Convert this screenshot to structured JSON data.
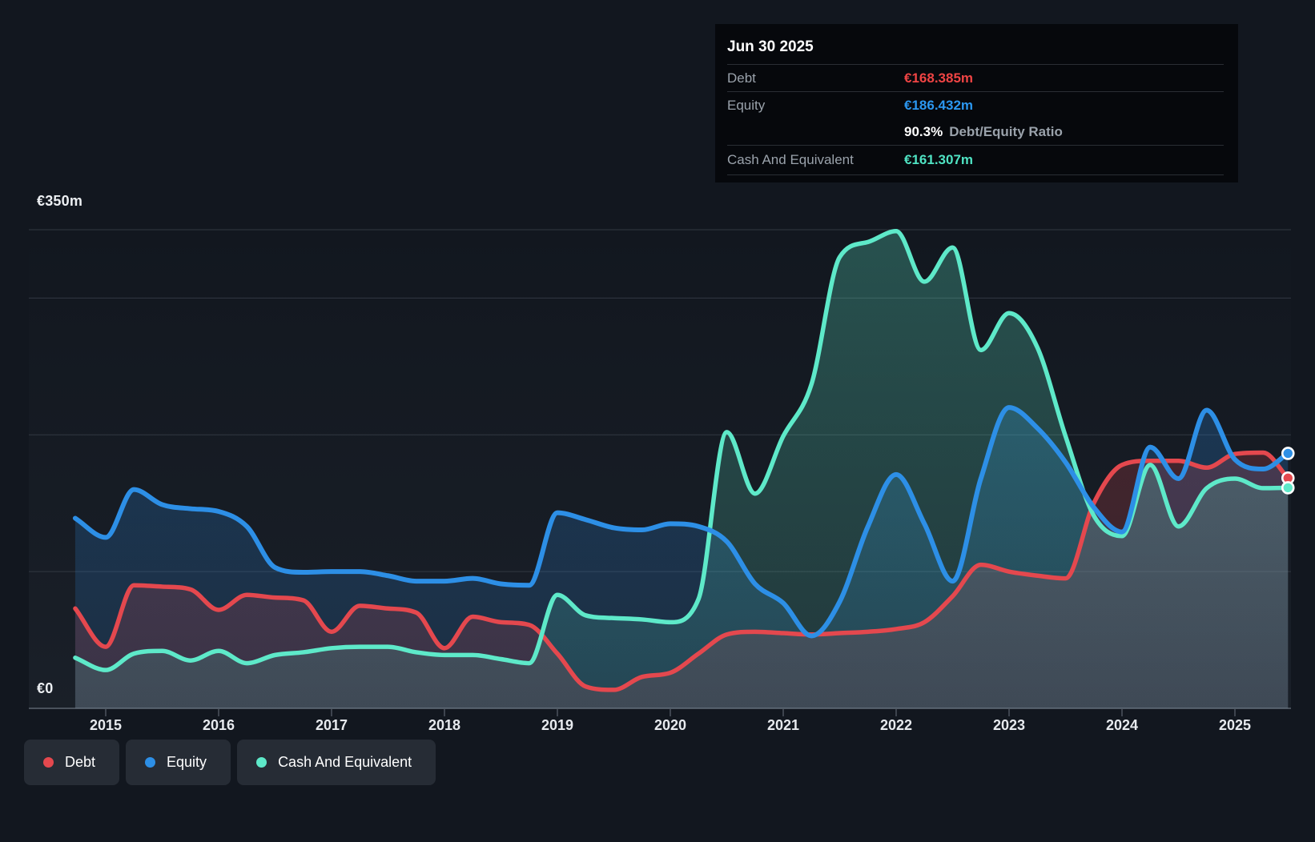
{
  "tooltip": {
    "date": "Jun 30 2025",
    "debt_label": "Debt",
    "debt_value": "€168.385m",
    "equity_label": "Equity",
    "equity_value": "€186.432m",
    "ratio_value": "90.3%",
    "ratio_label": "Debt/Equity Ratio",
    "cash_label": "Cash And Equivalent",
    "cash_value": "€161.307m"
  },
  "axis": {
    "y_max_label": "€350m",
    "y_zero_label": "€0",
    "years": [
      "2015",
      "2016",
      "2017",
      "2018",
      "2019",
      "2020",
      "2021",
      "2022",
      "2023",
      "2024",
      "2025"
    ]
  },
  "legend": {
    "items": [
      {
        "key": "debt",
        "label": "Debt"
      },
      {
        "key": "equity",
        "label": "Equity"
      },
      {
        "key": "cash",
        "label": "Cash And Equivalent"
      }
    ]
  },
  "colors": {
    "debt": "#e4484e",
    "equity": "#2d8fe6",
    "cash": "#5ee9c9",
    "debt_value_text": "#ef4444",
    "equity_value_text": "#2b97f0",
    "cash_value_text": "#4fe3c3",
    "background": "#12171f"
  },
  "chart_data": {
    "type": "area",
    "title": "",
    "xlabel": "",
    "ylabel": "€m",
    "x_unit": "decimal_year",
    "ylim": [
      0,
      350
    ],
    "gridlines_m": [
      0,
      100,
      200,
      300,
      350
    ],
    "grid": true,
    "legend_position": "bottom-left",
    "x": [
      2014.73,
      2015.0,
      2015.25,
      2015.5,
      2015.75,
      2016.0,
      2016.25,
      2016.5,
      2016.75,
      2017.0,
      2017.25,
      2017.5,
      2017.75,
      2018.0,
      2018.25,
      2018.5,
      2018.75,
      2019.0,
      2019.25,
      2019.5,
      2019.75,
      2020.0,
      2020.25,
      2020.5,
      2020.75,
      2021.0,
      2021.25,
      2021.5,
      2021.75,
      2022.0,
      2022.25,
      2022.5,
      2022.75,
      2023.0,
      2023.25,
      2023.5,
      2023.75,
      2024.0,
      2024.25,
      2024.5,
      2024.75,
      2025.0,
      2025.25,
      2025.47
    ],
    "series": [
      {
        "name": "Debt",
        "color": "#e4484e",
        "values": [
          73,
          45,
          90,
          89,
          87,
          72,
          83,
          81,
          79,
          56,
          75,
          73,
          70,
          44,
          67,
          63,
          61,
          40,
          16,
          13.5,
          23,
          26,
          40,
          54,
          56,
          55,
          54,
          55,
          56,
          58,
          63,
          82,
          105,
          100,
          97,
          95,
          150,
          178,
          181,
          181,
          176,
          186,
          187,
          168.385
        ]
      },
      {
        "name": "Equity",
        "color": "#2d8fe6",
        "values": [
          139,
          125,
          160,
          149,
          146,
          144,
          133,
          103,
          99.5,
          100,
          100,
          97,
          93,
          93,
          95,
          91,
          90,
          143,
          138,
          132,
          130.5,
          135,
          133,
          122,
          91,
          77,
          53,
          78,
          133,
          171,
          135,
          93,
          168,
          220,
          205,
          180,
          147,
          129,
          191,
          168,
          218,
          182,
          175,
          186.432
        ]
      },
      {
        "name": "Cash And Equivalent",
        "color": "#5ee9c9",
        "values": [
          37,
          28,
          40,
          42,
          35,
          42,
          33,
          39,
          41,
          44,
          45,
          45,
          41,
          39,
          39,
          36,
          33,
          83,
          68,
          66,
          65,
          63,
          80,
          202,
          157,
          199,
          237,
          330,
          341,
          349,
          312,
          337,
          262,
          289,
          264,
          199,
          141,
          126,
          178,
          133,
          161,
          168,
          161,
          161.307
        ]
      }
    ]
  }
}
